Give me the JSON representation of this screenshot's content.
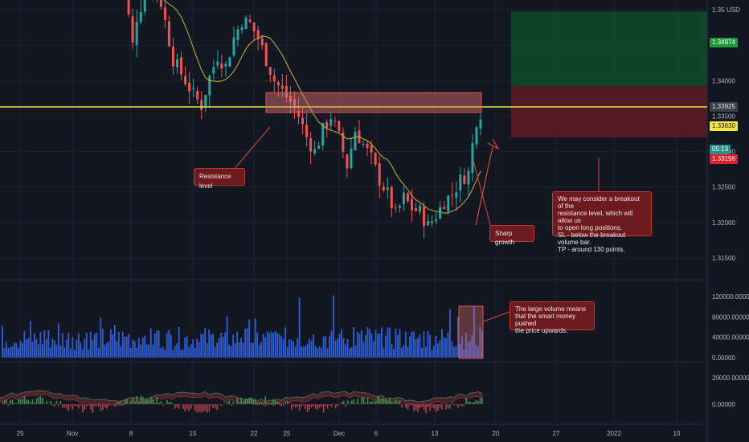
{
  "chart_data": {
    "type": "candlestick",
    "currency": "USD",
    "price_axis_ticks": [
      "1.35",
      "1.34500",
      "1.34000",
      "1.33500",
      "1.33000",
      "1.32500",
      "1.32000",
      "1.31500"
    ],
    "price_axis_values": [
      1.35,
      1.345,
      1.34,
      1.335,
      1.33,
      1.325,
      1.32,
      1.315
    ],
    "date_axis_ticks": [
      "25",
      "Nov",
      "8",
      "15",
      "22",
      "25",
      "Dec",
      "6",
      "13",
      "20",
      "27",
      "2022",
      "10"
    ],
    "volume_axis_ticks": [
      "120000.00000",
      "80000.00000",
      "40000.00000",
      "0.00000"
    ],
    "volume_axis_values": [
      120000,
      80000,
      40000,
      0
    ],
    "indicator_axis_ticks": [
      "20000.00000",
      "0.00000"
    ],
    "indicator_axis_values": [
      20000,
      0
    ],
    "price_labels": {
      "target": "1.34974",
      "entry": "1.33925",
      "resistance": "1.33630",
      "countdown": "05:13",
      "stop": "1.33198"
    },
    "price_levels": {
      "target": 1.34974,
      "entry": 1.33925,
      "resistance": 1.3363,
      "stop": 1.33198,
      "zone_top": 1.3383,
      "zone_bottom": 1.3355
    },
    "price_path": [
      [
        0,
        1.356
      ],
      [
        2,
        1.353
      ],
      [
        4,
        1.345
      ],
      [
        5,
        1.349
      ],
      [
        7,
        1.352
      ],
      [
        9,
        1.355
      ],
      [
        11,
        1.351
      ],
      [
        14,
        1.343
      ],
      [
        16,
        1.341
      ],
      [
        19,
        1.338
      ],
      [
        21,
        1.3365
      ],
      [
        23,
        1.3405
      ],
      [
        25,
        1.3435
      ],
      [
        27,
        1.342
      ],
      [
        29,
        1.346
      ],
      [
        31,
        1.3485
      ],
      [
        33,
        1.348
      ],
      [
        35,
        1.346
      ],
      [
        37,
        1.343
      ],
      [
        39,
        1.34
      ],
      [
        41,
        1.3385
      ],
      [
        43,
        1.337
      ],
      [
        45,
        1.335
      ],
      [
        47,
        1.332
      ],
      [
        49,
        1.33
      ],
      [
        51,
        1.333
      ],
      [
        53,
        1.335
      ],
      [
        55,
        1.332
      ],
      [
        57,
        1.328
      ],
      [
        59,
        1.333
      ],
      [
        61,
        1.331
      ],
      [
        63,
        1.329
      ],
      [
        65,
        1.326
      ],
      [
        67,
        1.324
      ],
      [
        69,
        1.321
      ],
      [
        71,
        1.3235
      ],
      [
        73,
        1.322
      ],
      [
        75,
        1.3215
      ],
      [
        77,
        1.3195
      ],
      [
        79,
        1.321
      ],
      [
        81,
        1.323
      ],
      [
        83,
        1.324
      ],
      [
        85,
        1.326
      ],
      [
        87,
        1.327
      ],
      [
        88,
        1.331
      ],
      [
        89,
        1.3345
      ],
      [
        90,
        1.3355
      ]
    ],
    "annotations": [
      "Resistance level",
      "Sharp growth",
      "We may consider a breakout of the\nresistance level, which will allow us\nto open long positions.\nSL - below the breakout volume bar.\nTP - around 130 points.",
      "The large volume means\nthat the smart money pushed\nthe price upwards."
    ],
    "colors": {
      "background": "#131722",
      "up": "#26a69a",
      "down": "#ef5350",
      "ma": "#c9b53a",
      "resistance_line": "#f5e642",
      "volume": "#2f5fd8",
      "note_bg": "#6e1b1f",
      "note_border": "#c0392b",
      "target_zone": "#0e4d2a",
      "stop_zone": "#5a1a22",
      "target_tag": "#1a9c3a",
      "stop_tag": "#e01e2a",
      "resistance_tag": "#f5e642",
      "entry_tag": "#3c3f4a",
      "countdown_tag": "#2a8f86"
    },
    "grid": true
  }
}
